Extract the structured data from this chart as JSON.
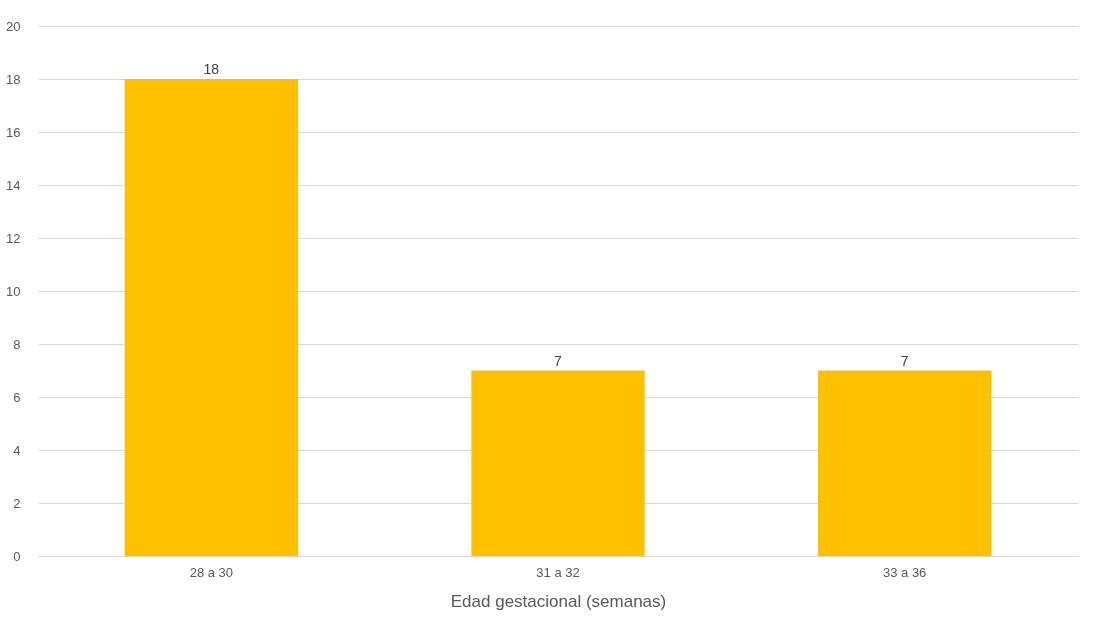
{
  "chart_data": {
    "type": "bar",
    "xlabel": "Edad gestacional (semanas)",
    "categories": [
      "28 a 30",
      "31 a 32",
      "33 a 36"
    ],
    "values": [
      18,
      7,
      7
    ],
    "color": "#ffc000",
    "ylim": [
      0,
      20
    ],
    "yticks": [
      0,
      2,
      4,
      6,
      8,
      10,
      12,
      14,
      16,
      18,
      20
    ],
    "grid": "y",
    "data_labels": true
  }
}
